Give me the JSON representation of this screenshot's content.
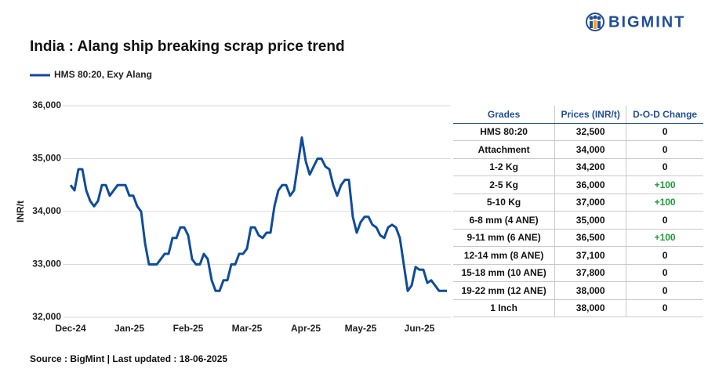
{
  "header": {
    "logo": "BIGMINT"
  },
  "chart_data": {
    "type": "line",
    "title": "India : Alang ship breaking scrap price trend",
    "y_label": "INR/t",
    "categories": [
      "Dec-24",
      null,
      null,
      null,
      null,
      null,
      null,
      null,
      null,
      null,
      null,
      null,
      null,
      null,
      null,
      "Jan-25",
      null,
      null,
      null,
      null,
      null,
      null,
      null,
      null,
      null,
      null,
      null,
      null,
      null,
      null,
      "Feb-25",
      null,
      null,
      null,
      null,
      null,
      null,
      null,
      null,
      null,
      null,
      null,
      null,
      null,
      null,
      "Mar-25",
      null,
      null,
      null,
      null,
      null,
      null,
      null,
      null,
      null,
      null,
      null,
      null,
      null,
      null,
      "Apr-25",
      null,
      null,
      null,
      null,
      null,
      null,
      null,
      null,
      null,
      null,
      null,
      null,
      null,
      "May-25",
      null,
      null,
      null,
      null,
      null,
      null,
      null,
      null,
      null,
      null,
      null,
      null,
      null,
      null,
      "Jun-25",
      null,
      null,
      null,
      null,
      null,
      null,
      null
    ],
    "series": [
      {
        "name": "HMS 80:20, Exy Alang",
        "color": "#0f4c9c",
        "values": [
          34500,
          34400,
          34800,
          34800,
          34400,
          34200,
          34100,
          34200,
          34500,
          34500,
          34300,
          34400,
          34500,
          34500,
          34500,
          34300,
          34300,
          34100,
          34000,
          33400,
          33000,
          33000,
          33000,
          33100,
          33200,
          33200,
          33500,
          33500,
          33700,
          33700,
          33550,
          33100,
          33000,
          33000,
          33200,
          33100,
          32700,
          32500,
          32500,
          32700,
          32700,
          33000,
          33000,
          33200,
          33200,
          33300,
          33700,
          33700,
          33550,
          33500,
          33600,
          33600,
          34100,
          34400,
          34500,
          34500,
          34300,
          34400,
          34900,
          35400,
          34950,
          34700,
          34850,
          35000,
          35000,
          34850,
          34800,
          34500,
          34300,
          34500,
          34600,
          34600,
          33900,
          33600,
          33800,
          33900,
          33900,
          33750,
          33700,
          33550,
          33500,
          33700,
          33750,
          33700,
          33500,
          33000,
          32500,
          32600,
          32950,
          32900,
          32900,
          32650,
          32700,
          32600,
          32500,
          32500,
          32500
        ]
      }
    ],
    "ylim": [
      32000,
      36000
    ],
    "yticks": [
      {
        "value": 32000,
        "label": "32,000"
      },
      {
        "value": 33000,
        "label": "33,000"
      },
      {
        "value": 34000,
        "label": "34,000"
      },
      {
        "value": 35000,
        "label": "35,000"
      },
      {
        "value": 36000,
        "label": "36,000"
      }
    ],
    "grid": true
  },
  "table": {
    "columns": [
      "Grades",
      "Prices (INR/t)",
      "D-O-D Change"
    ],
    "rows": [
      [
        "HMS 80:20",
        "32,500",
        "0"
      ],
      [
        "Attachment",
        "34,000",
        "0"
      ],
      [
        "1-2 Kg",
        "34,200",
        "0"
      ],
      [
        "2-5 Kg",
        "36,000",
        "+100"
      ],
      [
        "5-10 Kg",
        "37,000",
        "+100"
      ],
      [
        "6-8 mm (4 ANE)",
        "35,000",
        "0"
      ],
      [
        "9-11 mm (6 ANE)",
        "36,500",
        "+100"
      ],
      [
        "12-14 mm (8 ANE)",
        "37,100",
        "0"
      ],
      [
        "15-18 mm (10 ANE)",
        "37,800",
        "0"
      ],
      [
        "19-22 mm (12 ANE)",
        "38,000",
        "0"
      ],
      [
        "1 Inch",
        "38,000",
        "0"
      ]
    ]
  },
  "footer": {
    "source": "Source : BigMint | Last updated : 18-06-2025"
  }
}
